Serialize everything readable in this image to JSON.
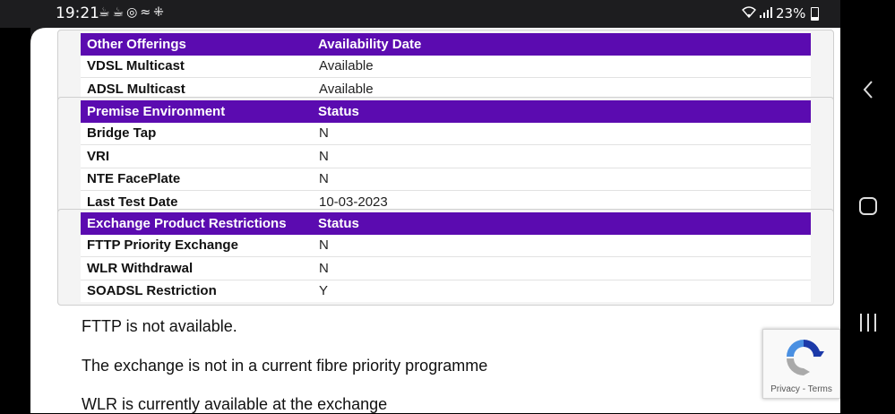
{
  "status_bar": {
    "time": "19:21",
    "icons": [
      "notification-icon",
      "notification-icon",
      "chrome-icon",
      "link-icon",
      "grid-icon"
    ],
    "battery": "23%"
  },
  "tables": [
    {
      "headers": [
        "Other Offerings",
        "Availability Date"
      ],
      "rows": [
        [
          "VDSL Multicast",
          "Available"
        ],
        [
          "ADSL Multicast",
          "Available"
        ]
      ]
    },
    {
      "headers": [
        "Premise Environment",
        "Status"
      ],
      "rows": [
        [
          "Bridge Tap",
          "N"
        ],
        [
          "VRI",
          "N"
        ],
        [
          "NTE FacePlate",
          "N"
        ],
        [
          "Last Test Date",
          "10-03-2023"
        ]
      ]
    },
    {
      "headers": [
        "Exchange Product Restrictions",
        "Status"
      ],
      "rows": [
        [
          "FTTP Priority Exchange",
          "N"
        ],
        [
          "WLR Withdrawal",
          "N"
        ],
        [
          "SOADSL Restriction",
          "Y"
        ]
      ]
    }
  ],
  "paragraphs": [
    "FTTP is not available.",
    "The exchange is not in a current fibre priority programme",
    "WLR is currently available at the exchange"
  ],
  "recaptcha": {
    "privacy": "Privacy",
    "separator": "-",
    "terms": "Terms"
  },
  "colors": {
    "header_bg": "#5b0bb0",
    "status_bar_bg": "#1d1d1f"
  }
}
